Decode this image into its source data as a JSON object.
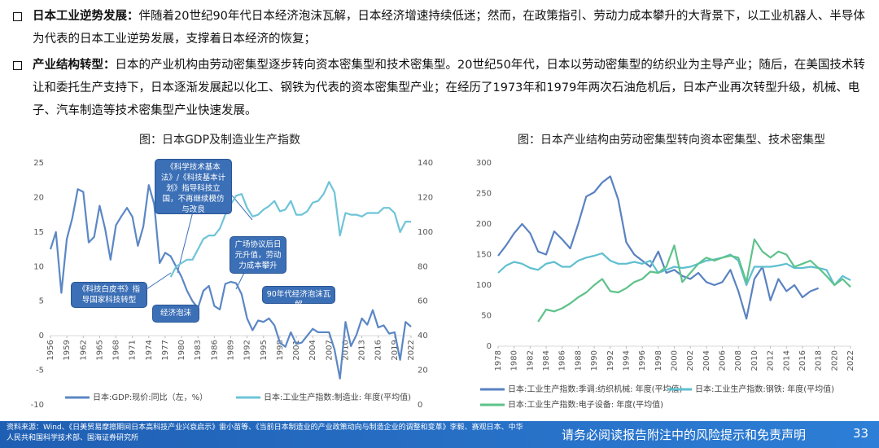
{
  "bullets": [
    {
      "label": "日本工业逆势发展：",
      "text": "伴随着20世纪90年代日本经济泡沫瓦解，日本经济增速持续低迷；然而，在政策指引、劳动力成本攀升的大背景下，以工业机器人、半导体为代表的日本工业逆势发展，支撑着日本经济的恢复；"
    },
    {
      "label": "产业结构转型：",
      "text": "日本的产业机构由劳动密集型逐步转向资本密集型和技术密集型。20世纪50年代，日本以劳动密集型的纺织业为主导产业；随后，在美国技术转让和委托生产支持下，日本逐渐发展起以化工、钢铁为代表的资本密集型产业；在经历了1973年和1979年两次石油危机后，日本产业再次转型升级，机械、电子、汽车制造等技术密集型产业快速发展。"
    }
  ],
  "chart_data": [
    {
      "type": "line",
      "title": "图：日本GDP及制造业生产指数",
      "x": [
        1956,
        1957,
        1958,
        1959,
        1960,
        1961,
        1962,
        1963,
        1964,
        1965,
        1966,
        1967,
        1968,
        1969,
        1970,
        1971,
        1972,
        1973,
        1974,
        1975,
        1976,
        1977,
        1978,
        1979,
        1980,
        1981,
        1982,
        1983,
        1984,
        1985,
        1986,
        1987,
        1988,
        1989,
        1990,
        1991,
        1992,
        1993,
        1994,
        1995,
        1996,
        1997,
        1998,
        1999,
        2000,
        2001,
        2002,
        2003,
        2004,
        2005,
        2006,
        2007,
        2008,
        2009,
        2010,
        2011,
        2012,
        2013,
        2014,
        2015,
        2016,
        2017,
        2018,
        2019,
        2020,
        2021,
        2022
      ],
      "xlim": [
        1956,
        2022
      ],
      "xticks": [
        1956,
        1959,
        1962,
        1965,
        1968,
        1971,
        1974,
        1977,
        1980,
        1983,
        1986,
        1989,
        1992,
        1995,
        1998,
        2001,
        2004,
        2007,
        2010,
        2013,
        2016,
        2019,
        2022
      ],
      "ylim": [
        -10,
        25
      ],
      "yticks": [
        -10,
        -5,
        0,
        5,
        10,
        15,
        20,
        25
      ],
      "y2lim": [
        0,
        140
      ],
      "y2ticks": [
        0,
        20,
        40,
        60,
        80,
        100,
        120,
        140
      ],
      "series": [
        {
          "name": "日本:GDP:现价:同比（左，%）",
          "color": "#5b87c5",
          "values": [
            12.5,
            15,
            6.2,
            14,
            17,
            21.2,
            20.8,
            13.5,
            14.3,
            18.8,
            15.5,
            11,
            16,
            17.3,
            18.5,
            17.2,
            13,
            15.8,
            21.8,
            19,
            10.5,
            12,
            11.5,
            10,
            8.5,
            6.5,
            5,
            4,
            6.5,
            7.2,
            4.3,
            3.8,
            7.5,
            7.8,
            7.6,
            6,
            2.5,
            0.8,
            2.2,
            2,
            2.5,
            1.5,
            -1,
            -1.6,
            0.5,
            -1.2,
            -1,
            0,
            1,
            0.5,
            0.5,
            0.5,
            -2,
            -6.2,
            2,
            -1.5,
            0.1,
            2.5,
            1.6,
            3.7,
            1.2,
            1.5,
            0.3,
            0.5,
            -3.5,
            2,
            1.3
          ]
        },
        {
          "name": "日本:工业生产指数:制造业: 年度(平均值)",
          "color": "#6ec4d8",
          "axis": "y2",
          "values": [
            null,
            null,
            null,
            null,
            null,
            null,
            null,
            null,
            null,
            null,
            null,
            null,
            null,
            null,
            null,
            null,
            null,
            null,
            null,
            null,
            null,
            null,
            74,
            80,
            82,
            84,
            84,
            90,
            96,
            98,
            98,
            102,
            110,
            116,
            121,
            122,
            114,
            109,
            110,
            113,
            115,
            118,
            112,
            113,
            118,
            110,
            110,
            112,
            117,
            118,
            122,
            129,
            123,
            98,
            111,
            110,
            110,
            109,
            111,
            111,
            111,
            114,
            114,
            111,
            100,
            106,
            106
          ]
        }
      ],
      "annotations": [
        "《科学技术基本法》/《科技基本计划》指导科技立国，不再继续模仿与改良",
        "广场协议后日元升值，劳动力成本攀升",
        "《科技白皮书》指导国家科技转型",
        "经济泡沫",
        "90年代经济泡沫瓦解"
      ]
    },
    {
      "type": "line",
      "title": "图：日本产业结构由劳动密集型转向资本密集型、技术密集型",
      "x": [
        1978,
        1979,
        1980,
        1981,
        1982,
        1983,
        1984,
        1985,
        1986,
        1987,
        1988,
        1989,
        1990,
        1991,
        1992,
        1993,
        1994,
        1995,
        1996,
        1997,
        1998,
        1999,
        2000,
        2001,
        2002,
        2003,
        2004,
        2005,
        2006,
        2007,
        2008,
        2009,
        2010,
        2011,
        2012,
        2013,
        2014,
        2015,
        2016,
        2017,
        2018,
        2019,
        2020,
        2021,
        2022
      ],
      "xlim": [
        1978,
        2022
      ],
      "xticks": [
        1978,
        1980,
        1982,
        1984,
        1986,
        1988,
        1990,
        1992,
        1994,
        1996,
        1998,
        2000,
        2002,
        2004,
        2006,
        2008,
        2010,
        2012,
        2014,
        2016,
        2018,
        2020,
        2022
      ],
      "ylim": [
        0,
        300
      ],
      "yticks": [
        0,
        50,
        100,
        150,
        200,
        250,
        300
      ],
      "series": [
        {
          "name": "日本:工业生产指数:季调:纺织机械: 年度(平均值)",
          "color": "#5a82c2",
          "values": [
            148,
            165,
            185,
            200,
            185,
            155,
            150,
            188,
            175,
            160,
            200,
            245,
            252,
            268,
            278,
            240,
            170,
            150,
            140,
            130,
            155,
            120,
            125,
            115,
            110,
            120,
            105,
            100,
            105,
            125,
            90,
            45,
            110,
            130,
            75,
            110,
            90,
            100,
            80,
            90,
            95,
            null,
            null,
            null,
            null
          ]
        },
        {
          "name": "日本:工业生产指数:钢铁: 年度(平均值)",
          "color": "#5fbfd0",
          "values": [
            120,
            132,
            138,
            135,
            128,
            125,
            135,
            138,
            130,
            130,
            140,
            145,
            148,
            152,
            140,
            135,
            135,
            138,
            135,
            140,
            120,
            125,
            130,
            128,
            130,
            135,
            140,
            142,
            145,
            150,
            140,
            100,
            130,
            130,
            130,
            132,
            135,
            128,
            128,
            130,
            128,
            125,
            100,
            115,
            108
          ]
        },
        {
          "name": "日本:工业生产指数:电子设备: 年度(平均值)",
          "color": "#5ec28a",
          "values": [
            null,
            null,
            null,
            null,
            null,
            40,
            60,
            57,
            62,
            70,
            80,
            88,
            100,
            110,
            90,
            88,
            95,
            105,
            110,
            122,
            120,
            130,
            165,
            105,
            120,
            135,
            145,
            140,
            145,
            148,
            145,
            105,
            175,
            155,
            145,
            155,
            150,
            130,
            135,
            140,
            128,
            115,
            100,
            110,
            97
          ]
        }
      ]
    }
  ],
  "footer": {
    "source": "资料来源：Wind、《日美贸易摩擦期间日本高科技产业兴衰启示》雷小苗等、《当前日本制造业的产业政策动向与制造企业的调整和变革》李毅、赛观日本、中华人民共和国科学技术部、国海证券研究所",
    "disclaimer": "请务必阅读报告附注中的风险提示和免责声明",
    "page": "33"
  }
}
